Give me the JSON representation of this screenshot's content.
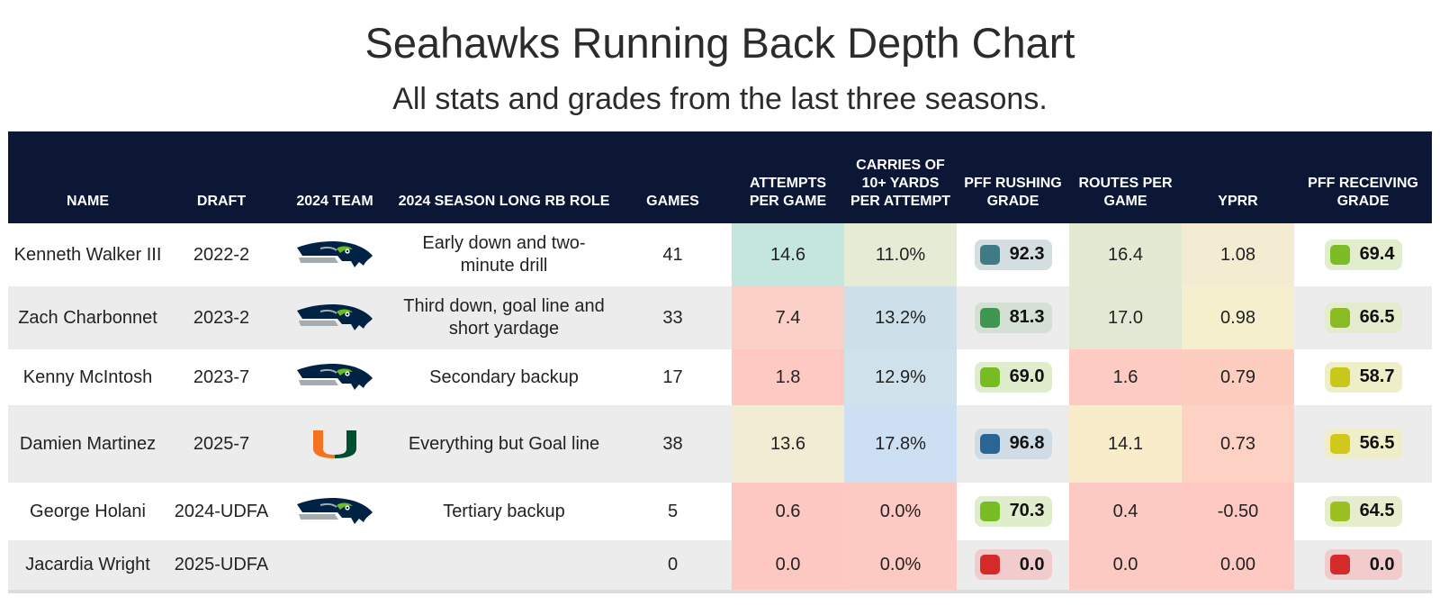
{
  "title": "Seahawks Running Back Depth Chart",
  "subtitle": "All stats and grades from the last three seasons.",
  "chart_data": {
    "type": "table",
    "columns": [
      "NAME",
      "DRAFT",
      "2024 TEAM",
      "2024 SEASON LONG RB ROLE",
      "GAMES",
      "ATTEMPTS PER GAME",
      "CARRIES OF 10+ YARDS PER ATTEMPT",
      "PFF RUSHING GRADE",
      "ROUTES PER GAME",
      "YPRR",
      "PFF RECEIVING GRADE"
    ],
    "rows": [
      {
        "name": "Kenneth Walker III",
        "draft": "2022-2",
        "team_logo": "seahawks-logo",
        "role": "Early down and two-minute drill",
        "games": "41",
        "att_pg": "14.6",
        "carries10": "11.0%",
        "rush_grade": "92.3",
        "routes_pg": "16.4",
        "yprr": "1.08",
        "rec_grade": "69.4"
      },
      {
        "name": "Zach Charbonnet",
        "draft": "2023-2",
        "team_logo": "seahawks-logo",
        "role": "Third down, goal line and short yardage",
        "games": "33",
        "att_pg": "7.4",
        "carries10": "13.2%",
        "rush_grade": "81.3",
        "routes_pg": "17.0",
        "yprr": "0.98",
        "rec_grade": "66.5"
      },
      {
        "name": "Kenny McIntosh",
        "draft": "2023-7",
        "team_logo": "seahawks-logo",
        "role": "Secondary backup",
        "games": "17",
        "att_pg": "1.8",
        "carries10": "12.9%",
        "rush_grade": "69.0",
        "routes_pg": "1.6",
        "yprr": "0.79",
        "rec_grade": "58.7"
      },
      {
        "name": "Damien Martinez",
        "draft": "2025-7",
        "team_logo": "miami-logo",
        "role": "Everything but Goal line",
        "games": "38",
        "att_pg": "13.6",
        "carries10": "17.8%",
        "rush_grade": "96.8",
        "routes_pg": "14.1",
        "yprr": "0.73",
        "rec_grade": "56.5"
      },
      {
        "name": "George Holani",
        "draft": "2024-UDFA",
        "team_logo": "seahawks-logo",
        "role": "Tertiary backup",
        "games": "5",
        "att_pg": "0.6",
        "carries10": "0.0%",
        "rush_grade": "70.3",
        "routes_pg": "0.4",
        "yprr": "-0.50",
        "rec_grade": "64.5"
      },
      {
        "name": "Jacardia Wright",
        "draft": "2025-UDFA",
        "team_logo": "",
        "role": "",
        "games": "0",
        "att_pg": "0.0",
        "carries10": "0.0%",
        "rush_grade": "0.0",
        "routes_pg": "0.0",
        "yprr": "0.00",
        "rec_grade": "0.0"
      }
    ]
  },
  "colors": {
    "header_bg": "#0c1736",
    "row_alt_bg": "#ececec",
    "att_pg": [
      "#c5e6de",
      "#fbd1c7",
      "#fdc9c2",
      "#f1ecd3",
      "#fdc8c2",
      "#fdc8c2"
    ],
    "carries10": [
      "#e6ebd6",
      "#cde0ea",
      "#cfe2ec",
      "#cddff2",
      "#fdc9c3",
      "#fdc9c3"
    ],
    "routes_pg": [
      "#e4e9d4",
      "#e2e8d4",
      "#fdcbc3",
      "#f8ecca",
      "#fdc9c3",
      "#fdc9c3"
    ],
    "yprr": [
      "#f4ecd2",
      "#f6efcd",
      "#fdcdc0",
      "#fdd2c5",
      "#fdc9c2",
      "#fdc9c2"
    ],
    "rush_grade": [
      {
        "bg": "#d4dde0",
        "sq": "#3f7a86"
      },
      {
        "bg": "#d3e0d3",
        "sq": "#3f9650"
      },
      {
        "bg": "#e0edcd",
        "sq": "#78bc24"
      },
      {
        "bg": "#cfdbe5",
        "sq": "#2a6596"
      },
      {
        "bg": "#e0edcd",
        "sq": "#78bc24"
      },
      {
        "bg": "#f2cccc",
        "sq": "#d42a2a"
      }
    ],
    "rec_grade": [
      {
        "bg": "#e2edcd",
        "sq": "#7cbd26"
      },
      {
        "bg": "#e4ecce",
        "sq": "#8bbb22"
      },
      {
        "bg": "#eeefc8",
        "sq": "#c8c81a"
      },
      {
        "bg": "#efeec8",
        "sq": "#d2c81c"
      },
      {
        "bg": "#e6edcc",
        "sq": "#9cbf22"
      },
      {
        "bg": "#f2cccc",
        "sq": "#d42a2a"
      }
    ]
  }
}
